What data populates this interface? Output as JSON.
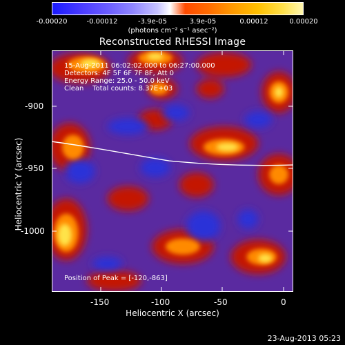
{
  "colorbar": {
    "ticks": [
      "-0.00020",
      "-0.00012",
      "-3.9e-05",
      "3.9e-05",
      "0.00012",
      "0.00020"
    ],
    "units": "(photons cm⁻² s⁻¹ asec⁻²)",
    "colors": [
      "#1a1aff",
      "#6a5cff",
      "#ffffff",
      "#ff4a00",
      "#ffc000",
      "#fff7b0"
    ]
  },
  "title": "Reconstructed RHESSI Image",
  "info": {
    "time_range": "15-Aug-2011 06:02:02.000 to 06:27:00.000",
    "detectors": "Detectors: 4F 5F 6F 7F 8F, Att 0",
    "energy": "Energy Range: 25.0 - 50.0 keV",
    "clean": "Clean    Total counts: 8.37E+03"
  },
  "peak": "Position of Peak = [-120,-863]",
  "axes": {
    "xlabel": "Heliocentric X (arcsec)",
    "ylabel": "Heliocentric Y (arcsec)",
    "xticks": [
      "-150",
      "-100",
      "-50",
      "0"
    ],
    "yticks": [
      "-900",
      "-950",
      "-1000"
    ]
  },
  "footer": "23-Aug-2013 05:23",
  "palette": {
    "background": "#000000",
    "violet": "#5a2aa0",
    "deep_blue": "#2a30d8",
    "red": "#c41400",
    "orange": "#ff8a00",
    "yellow": "#ffe34a"
  }
}
